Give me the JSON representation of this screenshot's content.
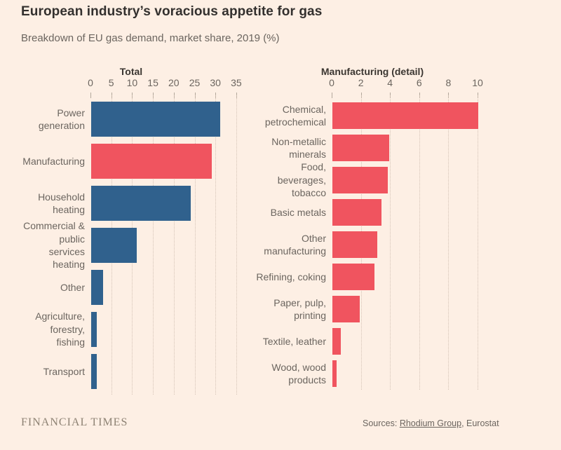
{
  "title": "European industry’s voracious appetite for gas",
  "subtitle": "Breakdown of EU gas demand, market share, 2019 (%)",
  "footer": {
    "logo": "FINANCIAL TIMES",
    "sources_prefix": "Sources: ",
    "source_link": "Rhodium Group",
    "sources_suffix": ", Eurostat"
  },
  "colors": {
    "background": "#FDEFE4",
    "blue": "#30618D",
    "pink": "#F0545F",
    "text_dark": "#33302E",
    "text_muted": "#6B655F",
    "gridline": "#D4C3B6"
  },
  "chart_data": [
    {
      "type": "bar",
      "orientation": "horizontal",
      "title": "Total",
      "categories": [
        "Power generation",
        "Manufacturing",
        "Household heating",
        "Commercial & public services heating",
        "Other",
        "Agriculture, forestry, fishing",
        "Transport"
      ],
      "labels": [
        "Power\ngeneration",
        "Manufacturing",
        "Household\nheating",
        "Commercial &\npublic services\nheating",
        "Other",
        "Agriculture,\nforestry, fishing",
        "Transport"
      ],
      "values": [
        31,
        29,
        24,
        11,
        3,
        1.5,
        1.5
      ],
      "bar_colors": [
        "blue",
        "pink",
        "blue",
        "blue",
        "blue",
        "blue",
        "blue"
      ],
      "xlim": [
        0,
        35
      ],
      "ticks": [
        0,
        5,
        10,
        15,
        20,
        25,
        30,
        35
      ],
      "grid": "dotted-vertical",
      "legend": "none"
    },
    {
      "type": "bar",
      "orientation": "horizontal",
      "title": "Manufacturing (detail)",
      "categories": [
        "Chemical, petrochemical",
        "Non-metallic minerals",
        "Food, beverages, tobacco",
        "Basic metals",
        "Other manufacturing",
        "Refining, coking",
        "Paper, pulp, printing",
        "Textile, leather",
        "Wood, wood products"
      ],
      "labels": [
        "Chemical,\npetrochemical",
        "Non-metallic\nminerals",
        "Food,\nbeverages,\ntobacco",
        "Basic metals",
        "Other\nmanufacturing",
        "Refining, coking",
        "Paper, pulp,\nprinting",
        "Textile, leather",
        "Wood, wood\nproducts"
      ],
      "values": [
        10,
        3.9,
        3.8,
        3.4,
        3.1,
        2.9,
        1.9,
        0.6,
        0.3
      ],
      "bar_colors": [
        "pink",
        "pink",
        "pink",
        "pink",
        "pink",
        "pink",
        "pink",
        "pink",
        "pink"
      ],
      "xlim": [
        0,
        10
      ],
      "ticks": [
        0,
        2,
        4,
        6,
        8,
        10
      ],
      "grid": "dotted-vertical",
      "legend": "none"
    }
  ]
}
